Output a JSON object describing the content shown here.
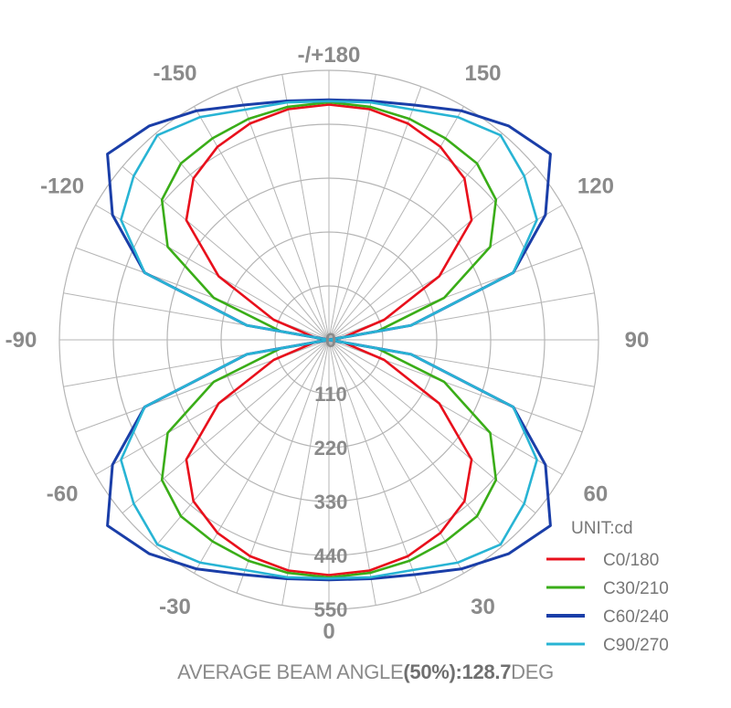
{
  "chart_data": {
    "type": "polar-line",
    "unit_label": "UNIT:cd",
    "angle_labels": [
      "-/+180",
      "150",
      "120",
      "90",
      "60",
      "30",
      "0",
      "-30",
      "-60",
      "-90",
      "-120",
      "-150"
    ],
    "radial_ticks": [
      "0",
      "110",
      "220",
      "330",
      "440",
      "550"
    ],
    "r_max": 550,
    "zero_at": "bottom",
    "angle_step": 10,
    "grid": true,
    "legend_position": "bottom-right",
    "angles": [
      0,
      10,
      20,
      30,
      40,
      50,
      60,
      70,
      80,
      90,
      100,
      110,
      120,
      130,
      140,
      150,
      160,
      170,
      180
    ],
    "series": [
      {
        "name": "C0/180",
        "color": "#e8101c",
        "values": [
          480,
          478,
          470,
          455,
          430,
          380,
          260,
          120,
          30,
          0,
          30,
          120,
          260,
          380,
          430,
          455,
          470,
          478,
          480
        ]
      },
      {
        "name": "C30/210",
        "color": "#3aad18",
        "values": [
          485,
          483,
          480,
          475,
          470,
          445,
          380,
          250,
          100,
          0,
          100,
          250,
          380,
          445,
          470,
          475,
          480,
          483,
          485
        ]
      },
      {
        "name": "C60/240",
        "color": "#1a3ea8",
        "values": [
          490,
          495,
          510,
          540,
          570,
          590,
          510,
          400,
          170,
          0,
          170,
          400,
          510,
          590,
          570,
          540,
          510,
          495,
          490
        ]
      },
      {
        "name": "C90/270",
        "color": "#28b4d4",
        "values": [
          487,
          492,
          500,
          525,
          545,
          520,
          490,
          400,
          170,
          0,
          170,
          400,
          490,
          520,
          545,
          525,
          500,
          492,
          487
        ]
      }
    ],
    "footer": {
      "prefix": "AVERAGE BEAM ANGLE",
      "bold": "(50%):128.7",
      "suffix": "DEG"
    }
  }
}
